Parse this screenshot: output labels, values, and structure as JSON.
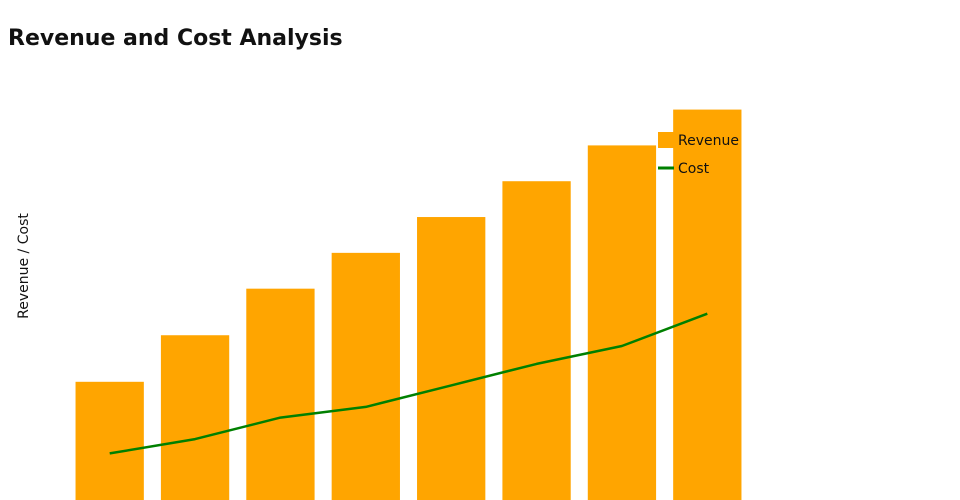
{
  "chart_data": {
    "type": "bar",
    "title": "Revenue and Cost Analysis",
    "xlabel": "",
    "ylabel": "Revenue / Cost",
    "categories": [
      "",
      "",
      "",
      "",
      "",
      "",
      "",
      ""
    ],
    "ylim": [
      0,
      110
    ],
    "grid": false,
    "legend_position": "top-right",
    "series": [
      {
        "name": "Revenue",
        "type": "bar",
        "color": "#ffa500",
        "values": [
          33,
          46,
          59,
          69,
          79,
          89,
          99,
          109
        ]
      },
      {
        "name": "Cost",
        "type": "line",
        "color": "#008000",
        "values": [
          13,
          17,
          23,
          26,
          32,
          38,
          43,
          52
        ]
      }
    ]
  }
}
